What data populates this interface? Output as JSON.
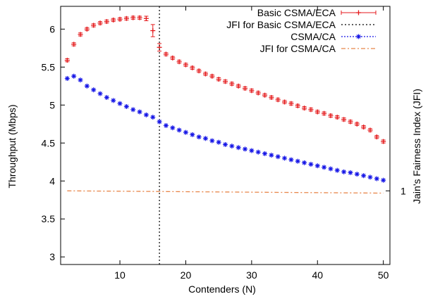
{
  "chart_data": {
    "type": "line",
    "xlabel": "Contenders (N)",
    "ylabel": "Throughput (Mbps)",
    "y2label": "Jain's Fairness Index (JFI)",
    "xlim": [
      1,
      51
    ],
    "ylim": [
      2.9,
      6.3
    ],
    "xticks": [
      10,
      20,
      30,
      40,
      50
    ],
    "yticks": [
      3,
      3.5,
      4,
      4.5,
      5,
      5.5,
      6
    ],
    "y2ticks": [
      1
    ],
    "y2_value_at_tick": 3.87,
    "grid": false,
    "legend_position": "top-right",
    "vertical_marker_x": 16,
    "series": [
      {
        "name": "Basic CSMA/ECA",
        "color": "#e41a1c",
        "marker": "plus",
        "line": "none",
        "errorbars": true,
        "x": [
          2,
          3,
          4,
          5,
          6,
          7,
          8,
          9,
          10,
          11,
          12,
          13,
          14,
          15,
          16,
          17,
          18,
          19,
          20,
          21,
          22,
          23,
          24,
          25,
          26,
          27,
          28,
          29,
          30,
          31,
          32,
          33,
          34,
          35,
          36,
          37,
          38,
          39,
          40,
          41,
          42,
          43,
          44,
          45,
          46,
          47,
          48,
          49,
          50
        ],
        "values": [
          5.59,
          5.8,
          5.93,
          6.0,
          6.05,
          6.08,
          6.1,
          6.12,
          6.13,
          6.14,
          6.15,
          6.15,
          6.14,
          5.98,
          5.76,
          5.67,
          5.62,
          5.57,
          5.53,
          5.49,
          5.45,
          5.41,
          5.38,
          5.34,
          5.31,
          5.28,
          5.25,
          5.22,
          5.19,
          5.16,
          5.13,
          5.1,
          5.07,
          5.04,
          5.02,
          4.99,
          4.96,
          4.94,
          4.91,
          4.89,
          4.86,
          4.84,
          4.81,
          4.78,
          4.75,
          4.71,
          4.67,
          4.58,
          4.52
        ],
        "errors": [
          0.02,
          0.02,
          0.02,
          0.02,
          0.02,
          0.02,
          0.02,
          0.02,
          0.02,
          0.02,
          0.02,
          0.02,
          0.03,
          0.08,
          0.05,
          0.02,
          0.02,
          0.02,
          0.02,
          0.02,
          0.02,
          0.02,
          0.02,
          0.02,
          0.02,
          0.02,
          0.02,
          0.02,
          0.02,
          0.02,
          0.02,
          0.02,
          0.02,
          0.02,
          0.02,
          0.02,
          0.02,
          0.02,
          0.02,
          0.02,
          0.02,
          0.02,
          0.02,
          0.02,
          0.02,
          0.02,
          0.02,
          0.02,
          0.02
        ]
      },
      {
        "name": "JFI for Basic CSMA/ECA",
        "color": "#000000",
        "marker": "none",
        "line": "dotted-vertical",
        "x": [
          16,
          16
        ],
        "values": [
          2.9,
          6.3
        ]
      },
      {
        "name": "CSMA/CA",
        "color": "#1414e6",
        "marker": "star",
        "line": "none",
        "x": [
          2,
          3,
          4,
          5,
          6,
          7,
          8,
          9,
          10,
          11,
          12,
          13,
          14,
          15,
          16,
          17,
          18,
          19,
          20,
          21,
          22,
          23,
          24,
          25,
          26,
          27,
          28,
          29,
          30,
          31,
          32,
          33,
          34,
          35,
          36,
          37,
          38,
          39,
          40,
          41,
          42,
          43,
          44,
          45,
          46,
          47,
          48,
          49,
          50
        ],
        "values": [
          5.35,
          5.38,
          5.33,
          5.25,
          5.2,
          5.15,
          5.1,
          5.06,
          5.02,
          4.98,
          4.94,
          4.91,
          4.87,
          4.84,
          4.78,
          4.73,
          4.7,
          4.67,
          4.64,
          4.61,
          4.58,
          4.56,
          4.53,
          4.51,
          4.48,
          4.46,
          4.44,
          4.42,
          4.4,
          4.38,
          4.36,
          4.34,
          4.32,
          4.3,
          4.28,
          4.26,
          4.24,
          4.22,
          4.2,
          4.18,
          4.16,
          4.14,
          4.12,
          4.11,
          4.09,
          4.07,
          4.05,
          4.03,
          4.01
        ]
      },
      {
        "name": "JFI for CSMA/CA",
        "color": "#e8864a",
        "marker": "none",
        "line": "dash-dot",
        "x": [
          2,
          50
        ],
        "values": [
          3.87,
          3.84
        ]
      }
    ]
  }
}
